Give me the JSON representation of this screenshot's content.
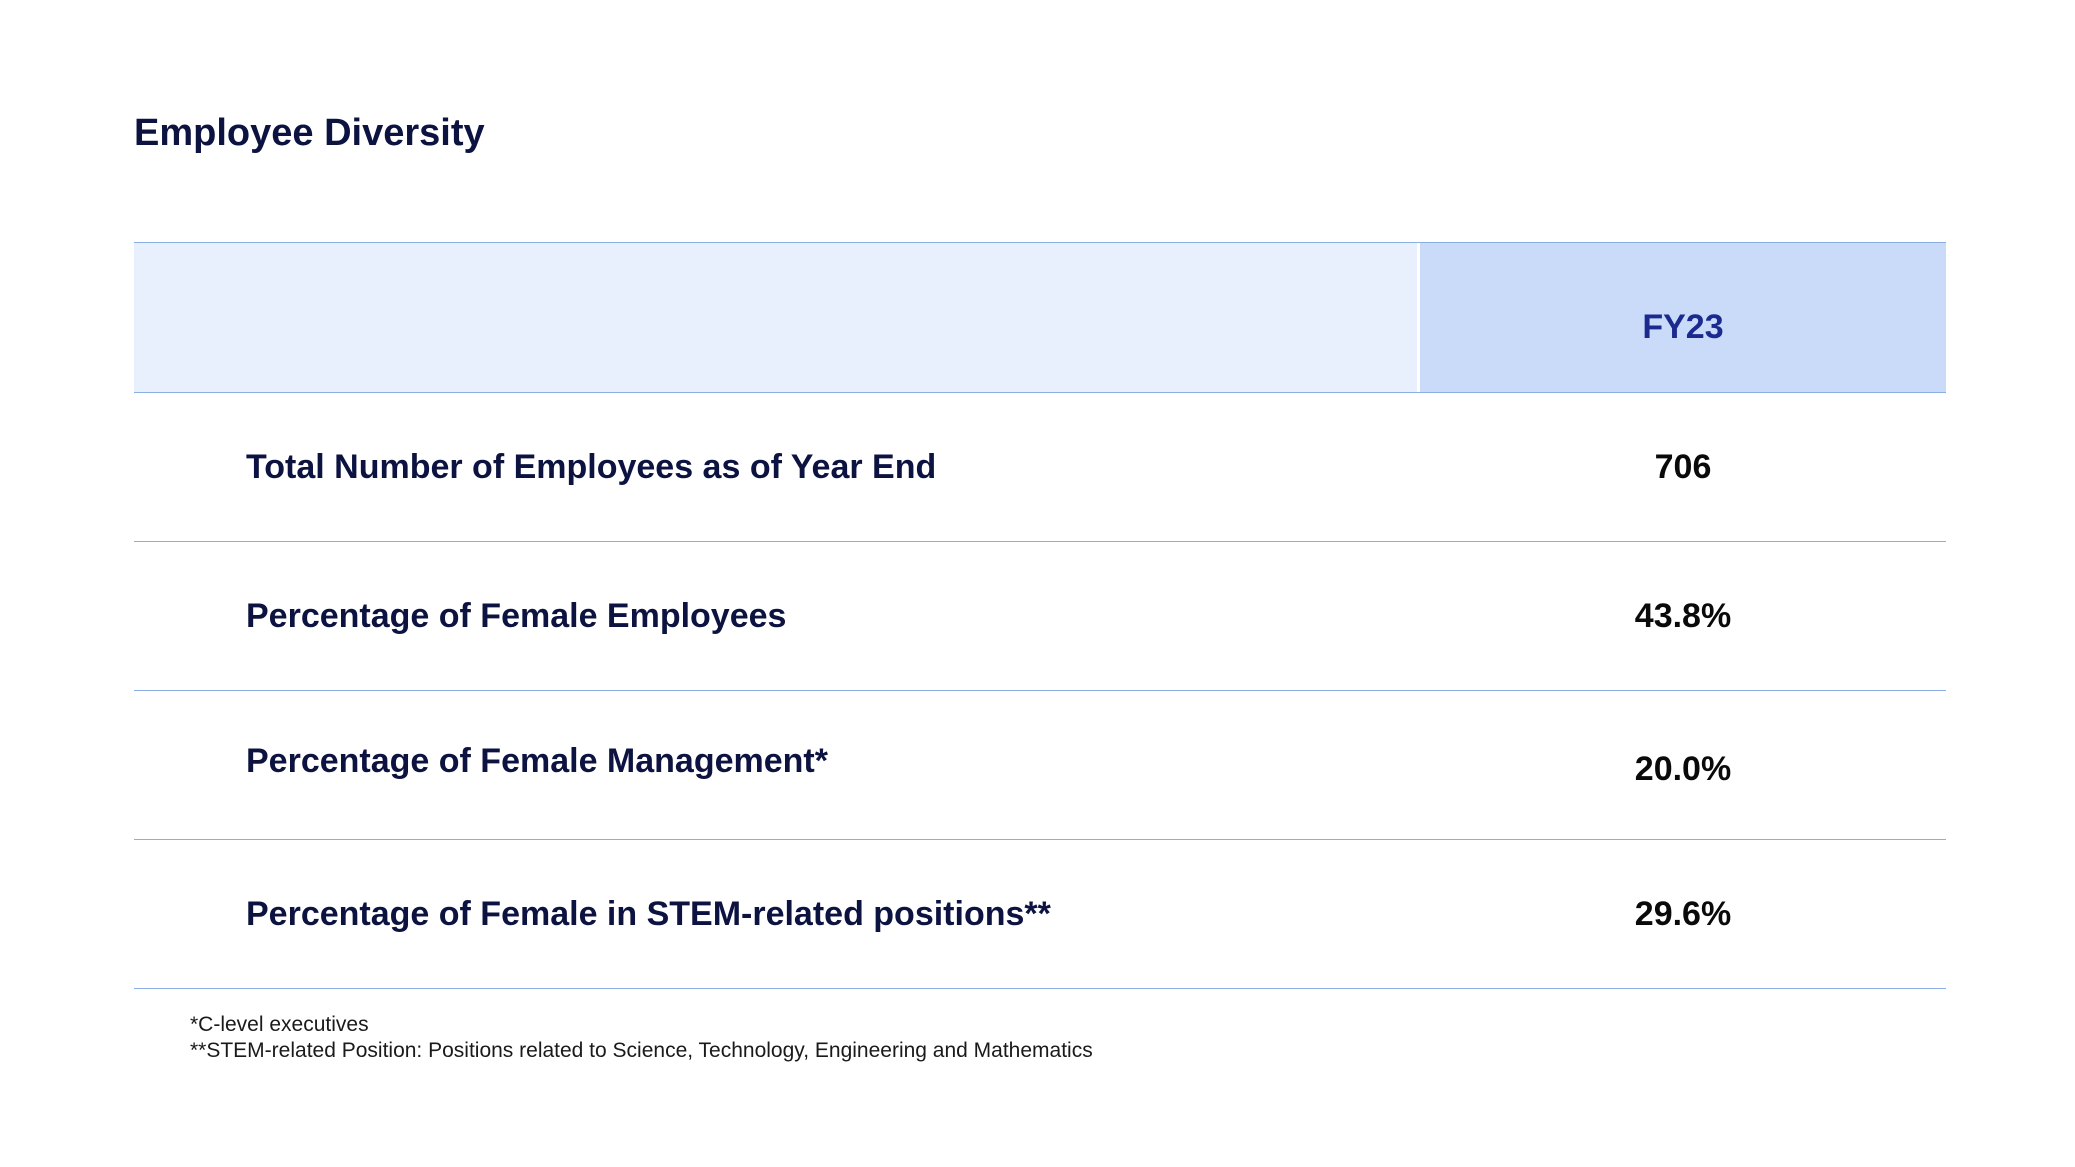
{
  "title": "Employee Diversity",
  "table": {
    "header": {
      "label": "",
      "period": "FY23"
    },
    "rows": [
      {
        "label": "Total Number of Employees as of Year End",
        "value": "706"
      },
      {
        "label": "Percentage of Female Employees",
        "value": "43.8%"
      },
      {
        "label": "Percentage of Female Management*",
        "value": "20.0%"
      },
      {
        "label": "Percentage of Female in STEM-related positions**",
        "value": "29.6%"
      }
    ]
  },
  "footnotes": [
    "*C-level executives",
    "**STEM-related Position: Positions related to Science, Technology, Engineering and Mathematics"
  ],
  "colors": {
    "title": "#0c1340",
    "header_bg": "#e8effd",
    "header_period_bg": "#cadbfa",
    "header_period_text": "#1b2a8f",
    "rule": "#8aaee0"
  }
}
